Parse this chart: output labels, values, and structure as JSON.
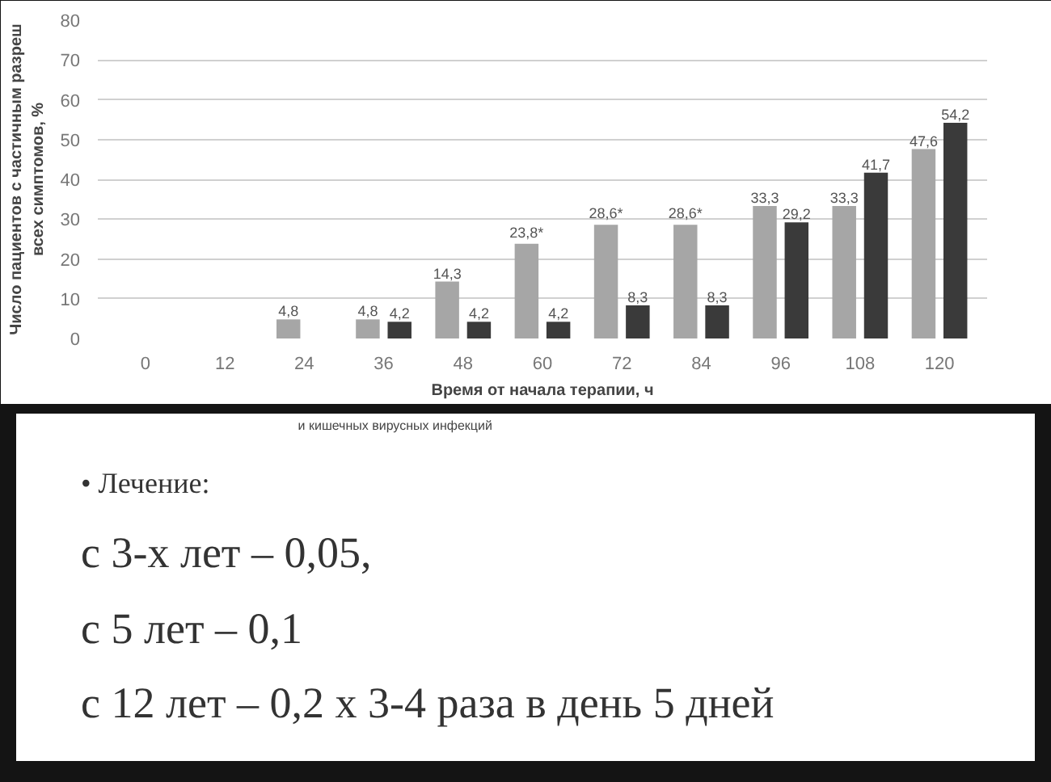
{
  "chart_data": {
    "type": "bar",
    "ylabel": "Число пациентов с частичным разреш\nвсех симптомов, %",
    "xlabel": "Время от начала терапии, ч",
    "categories": [
      "0",
      "12",
      "24",
      "36",
      "48",
      "60",
      "72",
      "84",
      "96",
      "108",
      "120"
    ],
    "series": [
      {
        "color": "#a6a6a6",
        "values": [
          null,
          null,
          4.8,
          4.8,
          14.3,
          23.8,
          28.6,
          28.6,
          33.3,
          33.3,
          47.6
        ],
        "value_labels": [
          null,
          null,
          "4,8",
          "4,8",
          "14,3",
          "23,8*",
          "28,6*",
          "28,6*",
          "33,3",
          "33,3",
          "47,6"
        ]
      },
      {
        "color": "#3a3a3a",
        "values": [
          null,
          null,
          null,
          4.2,
          4.2,
          4.2,
          8.3,
          8.3,
          29.2,
          41.7,
          54.2
        ],
        "value_labels": [
          null,
          null,
          null,
          "4,2",
          "4,2",
          "4,2",
          "8,3",
          "8,3",
          "29,2",
          "41,7",
          "54,2"
        ]
      }
    ],
    "ylim": [
      0,
      80
    ],
    "yticks": [
      0,
      10,
      20,
      30,
      40,
      50,
      60,
      70,
      80
    ],
    "grid": "y",
    "annotations": [
      "и кишечных вирусных инфекций",
      "• Лечение:",
      "с 3-х лет – 0,05,",
      "с 5 лет – 0,1",
      "с 12 лет – 0,2 х 3-4 раза в день 5 дней"
    ]
  }
}
